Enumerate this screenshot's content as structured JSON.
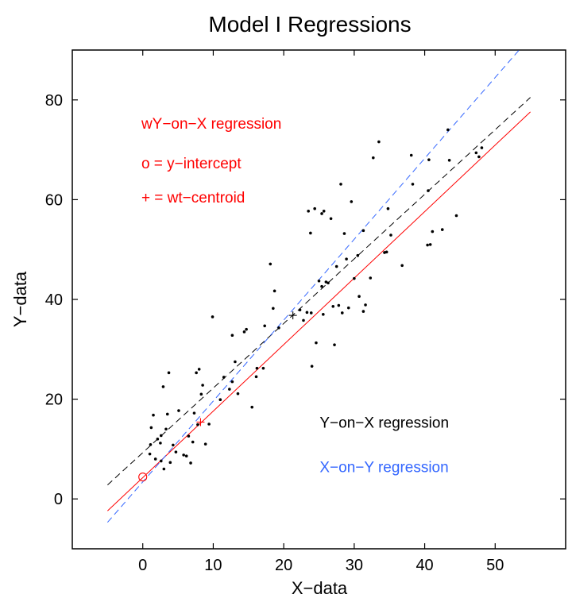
{
  "chart_data": {
    "type": "scatter",
    "title": "Model I Regressions",
    "xlabel": "X−data",
    "ylabel": "Y−data",
    "xlim": [
      -10,
      60
    ],
    "ylim": [
      -10,
      90
    ],
    "xticks": [
      0,
      10,
      20,
      30,
      40,
      50
    ],
    "yticks": [
      0,
      20,
      40,
      60,
      80
    ],
    "grid": false,
    "points": [
      [
        1.0,
        9.0
      ],
      [
        1.1,
        10.9
      ],
      [
        1.2,
        14.3
      ],
      [
        1.5,
        16.8
      ],
      [
        1.8,
        8.0
      ],
      [
        2.1,
        12.0
      ],
      [
        2.5,
        11.2
      ],
      [
        2.6,
        7.6
      ],
      [
        2.6,
        12.7
      ],
      [
        2.9,
        22.5
      ],
      [
        3.0,
        6.0
      ],
      [
        3.3,
        14.0
      ],
      [
        3.5,
        17.0
      ],
      [
        3.7,
        25.3
      ],
      [
        3.9,
        7.3
      ],
      [
        4.3,
        10.8
      ],
      [
        4.7,
        9.4
      ],
      [
        5.1,
        17.7
      ],
      [
        5.8,
        8.8
      ],
      [
        6.2,
        8.6
      ],
      [
        6.5,
        12.6
      ],
      [
        6.8,
        7.2
      ],
      [
        7.1,
        11.4
      ],
      [
        7.3,
        17.2
      ],
      [
        7.6,
        25.3
      ],
      [
        7.8,
        14.9
      ],
      [
        8.0,
        26.0
      ],
      [
        8.3,
        21.0
      ],
      [
        8.5,
        22.8
      ],
      [
        8.9,
        11.0
      ],
      [
        9.4,
        15.0
      ],
      [
        9.9,
        36.5
      ],
      [
        11.0,
        19.9
      ],
      [
        11.5,
        24.4
      ],
      [
        12.3,
        22.0
      ],
      [
        12.7,
        23.5
      ],
      [
        12.7,
        32.8
      ],
      [
        13.1,
        27.5
      ],
      [
        13.5,
        21.1
      ],
      [
        14.4,
        33.5
      ],
      [
        14.7,
        34.0
      ],
      [
        15.5,
        18.4
      ],
      [
        16.1,
        24.5
      ],
      [
        16.2,
        26.2
      ],
      [
        17.1,
        26.2
      ],
      [
        17.3,
        34.7
      ],
      [
        18.1,
        47.1
      ],
      [
        18.5,
        38.2
      ],
      [
        18.7,
        41.7
      ],
      [
        19.3,
        34.3
      ],
      [
        22.3,
        37.9
      ],
      [
        22.8,
        35.8
      ],
      [
        23.3,
        37.4
      ],
      [
        23.5,
        57.7
      ],
      [
        23.8,
        53.3
      ],
      [
        23.9,
        37.3
      ],
      [
        24.0,
        26.6
      ],
      [
        24.4,
        58.2
      ],
      [
        24.6,
        31.3
      ],
      [
        25.0,
        43.7
      ],
      [
        25.4,
        57.2
      ],
      [
        25.4,
        42.6
      ],
      [
        25.6,
        37.0
      ],
      [
        25.7,
        57.7
      ],
      [
        26.0,
        43.5
      ],
      [
        26.3,
        43.3
      ],
      [
        26.7,
        56.2
      ],
      [
        27.0,
        38.6
      ],
      [
        27.2,
        30.9
      ],
      [
        27.5,
        46.6
      ],
      [
        27.8,
        38.8
      ],
      [
        28.1,
        63.1
      ],
      [
        28.3,
        37.3
      ],
      [
        28.6,
        53.2
      ],
      [
        28.9,
        48.1
      ],
      [
        29.2,
        38.3
      ],
      [
        29.6,
        59.6
      ],
      [
        30.0,
        44.2
      ],
      [
        30.5,
        48.8
      ],
      [
        30.7,
        40.6
      ],
      [
        31.3,
        53.8
      ],
      [
        31.3,
        37.6
      ],
      [
        31.6,
        38.9
      ],
      [
        32.3,
        44.3
      ],
      [
        32.7,
        68.4
      ],
      [
        33.5,
        71.6
      ],
      [
        34.3,
        49.4
      ],
      [
        34.6,
        49.5
      ],
      [
        34.8,
        58.2
      ],
      [
        35.2,
        52.9
      ],
      [
        36.8,
        46.8
      ],
      [
        38.1,
        68.9
      ],
      [
        38.3,
        63.1
      ],
      [
        40.4,
        50.9
      ],
      [
        40.5,
        61.8
      ],
      [
        40.6,
        68.0
      ],
      [
        40.8,
        51.0
      ],
      [
        41.1,
        53.6
      ],
      [
        42.5,
        54.0
      ],
      [
        43.3,
        74.0
      ],
      [
        43.5,
        67.9
      ],
      [
        44.5,
        56.8
      ],
      [
        47.3,
        69.4
      ],
      [
        47.7,
        68.6
      ],
      [
        48.1,
        70.4
      ]
    ],
    "lines": [
      {
        "name": "wY−on−X regression",
        "color": "#ff0000",
        "dash": "solid",
        "x": [
          -5,
          55
        ],
        "y": [
          -2.4,
          77.6
        ]
      },
      {
        "name": "Y−on−X regression",
        "color": "#000000",
        "dash": "dashed",
        "x": [
          -5,
          55
        ],
        "y": [
          2.8,
          80.5
        ]
      },
      {
        "name": "X−on−Y regression",
        "color": "#3366ff",
        "dash": "dashed",
        "x": [
          -5,
          55
        ],
        "y": [
          -4.7,
          92.6
        ]
      }
    ],
    "markers": [
      {
        "label": "y-intercept",
        "shape": "circle",
        "color": "#ff0000",
        "x": 0,
        "y": 4.4
      },
      {
        "label": "wt-centroid",
        "shape": "plus",
        "color": "#ff0000",
        "x": 8.2,
        "y": 15.4
      },
      {
        "label": "centroid",
        "shape": "plus",
        "color": "#000000",
        "x": 21.3,
        "y": 36.8
      }
    ],
    "annotations": [
      {
        "text": "wY−on−X regression",
        "color": "#ff0000",
        "x": -0.2,
        "y": 74.2
      },
      {
        "text": "o = y−intercept",
        "color": "#ff0000",
        "x": -0.2,
        "y": 66.3
      },
      {
        "text": "+ = wt−centroid",
        "color": "#ff0000",
        "x": -0.2,
        "y": 59.4
      },
      {
        "text": "Y−on−X regression",
        "color": "#000000",
        "x": 25.1,
        "y": 14.3
      },
      {
        "text": "X−on−Y regression",
        "color": "#3366ff",
        "x": 25.1,
        "y": 5.4
      }
    ],
    "colors": {
      "regression_weighted": "#ff0000",
      "regression_yx": "#000000",
      "regression_xy": "#3366ff",
      "points": "#000000"
    }
  }
}
